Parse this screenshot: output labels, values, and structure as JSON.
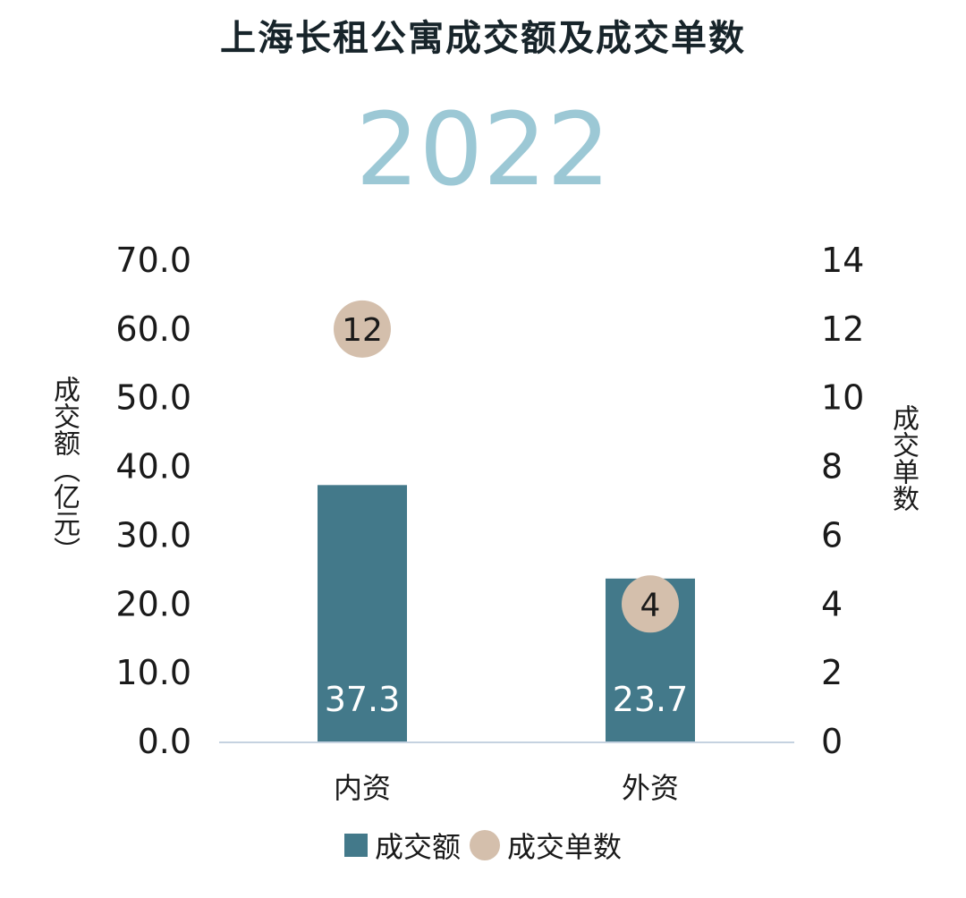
{
  "title": "上海长租公寓成交额及成交单数",
  "year": "2022",
  "colors": {
    "bar": "#43798a",
    "dot": "#d4bfac",
    "year": "#9cc8d5",
    "axis": "#c5d2e0"
  },
  "chart_data": {
    "type": "bar",
    "categories": [
      "内资",
      "外资"
    ],
    "series": [
      {
        "name": "成交额",
        "type": "bar",
        "axis": "left",
        "values": [
          37.3,
          23.7
        ],
        "labels": [
          "37.3",
          "23.7"
        ]
      },
      {
        "name": "成交单数",
        "type": "scatter",
        "axis": "right",
        "values": [
          12,
          4
        ],
        "labels": [
          "12",
          "4"
        ]
      }
    ],
    "ylabel_left": "成交额（亿元）",
    "ylabel_right": "成交单数",
    "ylim_left": [
      0,
      70
    ],
    "ylim_right": [
      0,
      14
    ],
    "yticks_left": [
      "0.0",
      "10.0",
      "20.0",
      "30.0",
      "40.0",
      "50.0",
      "60.0",
      "70.0"
    ],
    "yticks_right": [
      "0",
      "2",
      "4",
      "6",
      "8",
      "10",
      "12",
      "14"
    ],
    "legend": [
      "成交额",
      "成交单数"
    ],
    "legend_position": "bottom",
    "grid": false
  }
}
